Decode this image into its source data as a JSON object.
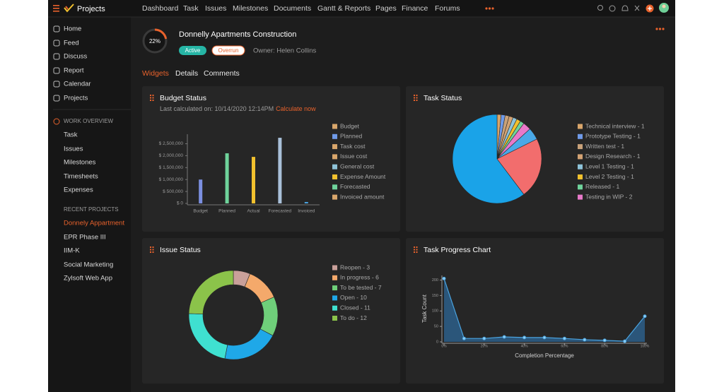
{
  "app": {
    "name": "Projects",
    "nav": [
      "Dashboard",
      "Task",
      "Issues",
      "Milestones",
      "Documents",
      "Gantt & Reports",
      "Pages",
      "Finance",
      "Forums"
    ]
  },
  "sidebar": {
    "menu": [
      "Home",
      "Feed",
      "Discuss",
      "Report",
      "Calendar",
      "Projects"
    ],
    "work_overview": {
      "title": "WORK OVERVIEW",
      "items": [
        "Task",
        "Issues",
        "Milestones",
        "Timesheets",
        "Expenses"
      ]
    },
    "recent_projects": {
      "title": "RECENT PROJECTS",
      "items": [
        "Donnely Appartment",
        "EPR Phase III",
        "IIM-K",
        "Social Marketing",
        "Zylsoft Web App"
      ]
    }
  },
  "project": {
    "title": "Donnelly Apartments Construction",
    "progress": {
      "value": 22,
      "label": "22%"
    },
    "status": "Active",
    "flag": "Overrun",
    "owner": "Owner: Helen Collins"
  },
  "tabs": [
    "Widgets",
    "Details",
    "Comments"
  ],
  "widgets": [
    {
      "title": "Budget Status",
      "subtitle": "Last calculated on: 10/14/2020 12:14PM",
      "action": "Calculate now",
      "chart_data": {
        "type": "bar",
        "categories": [
          "Budget",
          "Planned",
          "Actual",
          "Forecasted",
          "Invoiced"
        ],
        "values": [
          1000000,
          2100000,
          1950000,
          2750000,
          60000
        ],
        "colors": [
          "#7b8fe0",
          "#6fd39b",
          "#f2c12e",
          "#a9c0d9",
          "#4aa3df"
        ],
        "ylim": [
          0,
          2900000
        ],
        "yticks": [
          {
            "value": 0,
            "label": "$ 0"
          },
          {
            "value": 500000,
            "label": "$ 500,000"
          },
          {
            "value": 1000000,
            "label": "$ 1,000,000"
          },
          {
            "value": 1500000,
            "label": "$ 1,500,000"
          },
          {
            "value": 2000000,
            "label": "$ 2,000,000"
          },
          {
            "value": 2500000,
            "label": "$ 2,500,000"
          }
        ],
        "legend": [
          {
            "name": "Budget",
            "color": "#d9a66b"
          },
          {
            "name": "Planned",
            "color": "#6f9ae8"
          },
          {
            "name": "Task cost",
            "color": "#d9a66b"
          },
          {
            "name": "Issue cost",
            "color": "#d9a66b"
          },
          {
            "name": "General cost",
            "color": "#8ec3d9"
          },
          {
            "name": "Expense Amount",
            "color": "#f2c12e"
          },
          {
            "name": "Forecasted",
            "color": "#6fd39b"
          },
          {
            "name": "Invoiced amount",
            "color": "#d9a66b"
          }
        ]
      }
    },
    {
      "title": "Task Status",
      "chart_data": {
        "type": "pie",
        "categories": [
          "Technical interview - 1",
          "Prototype Testing - 1",
          "Written test - 1",
          "Design Research - 1",
          "Level 1 Testing - 1",
          "Level 2 Testing - 1",
          "Released - 1",
          "Testing in WIP - 2",
          null,
          null,
          null
        ],
        "values": [
          1,
          1,
          1,
          1,
          1,
          1,
          1,
          2,
          3,
          15,
          41
        ],
        "colors": [
          "#d9a66b",
          "#6f9ae8",
          "#c9a27a",
          "#d4a373",
          "#8ec3d9",
          "#f2c12e",
          "#6fd39b",
          "#e879c9",
          "#4aa9e8",
          "#f26d6d",
          "#1aa3e8"
        ]
      }
    },
    {
      "title": "Issue Status",
      "chart_data": {
        "type": "donut",
        "categories": [
          "Reopen - 3",
          "In progress - 6",
          "To be tested - 7",
          "Open - 10",
          "Closed - 11",
          "To do - 12"
        ],
        "values": [
          3,
          6,
          7,
          10,
          11,
          12
        ],
        "colors": [
          "#c9a09a",
          "#f4a96b",
          "#6fcf7a",
          "#1fa8e8",
          "#3fe0d0",
          "#8bc34a"
        ]
      }
    },
    {
      "title": "Task Progress Chart",
      "chart_data": {
        "type": "area",
        "x": [
          0,
          10,
          20,
          30,
          40,
          50,
          60,
          70,
          80,
          90,
          100
        ],
        "values": [
          205,
          11,
          11,
          16,
          14,
          14,
          11,
          7,
          5,
          2,
          83
        ],
        "color": "#4aa3df",
        "xlim": [
          0,
          100
        ],
        "ylim": [
          0,
          215
        ],
        "xticks": [
          {
            "value": 0,
            "label": "0%"
          },
          {
            "value": 20,
            "label": "20%"
          },
          {
            "value": 40,
            "label": "40%"
          },
          {
            "value": 60,
            "label": "60%"
          },
          {
            "value": 80,
            "label": "80%"
          },
          {
            "value": 100,
            "label": "100%"
          }
        ],
        "yticks": [
          0,
          50,
          100,
          150,
          200
        ],
        "xlabel": "Completion Percentage",
        "ylabel": "Task Count"
      }
    }
  ]
}
